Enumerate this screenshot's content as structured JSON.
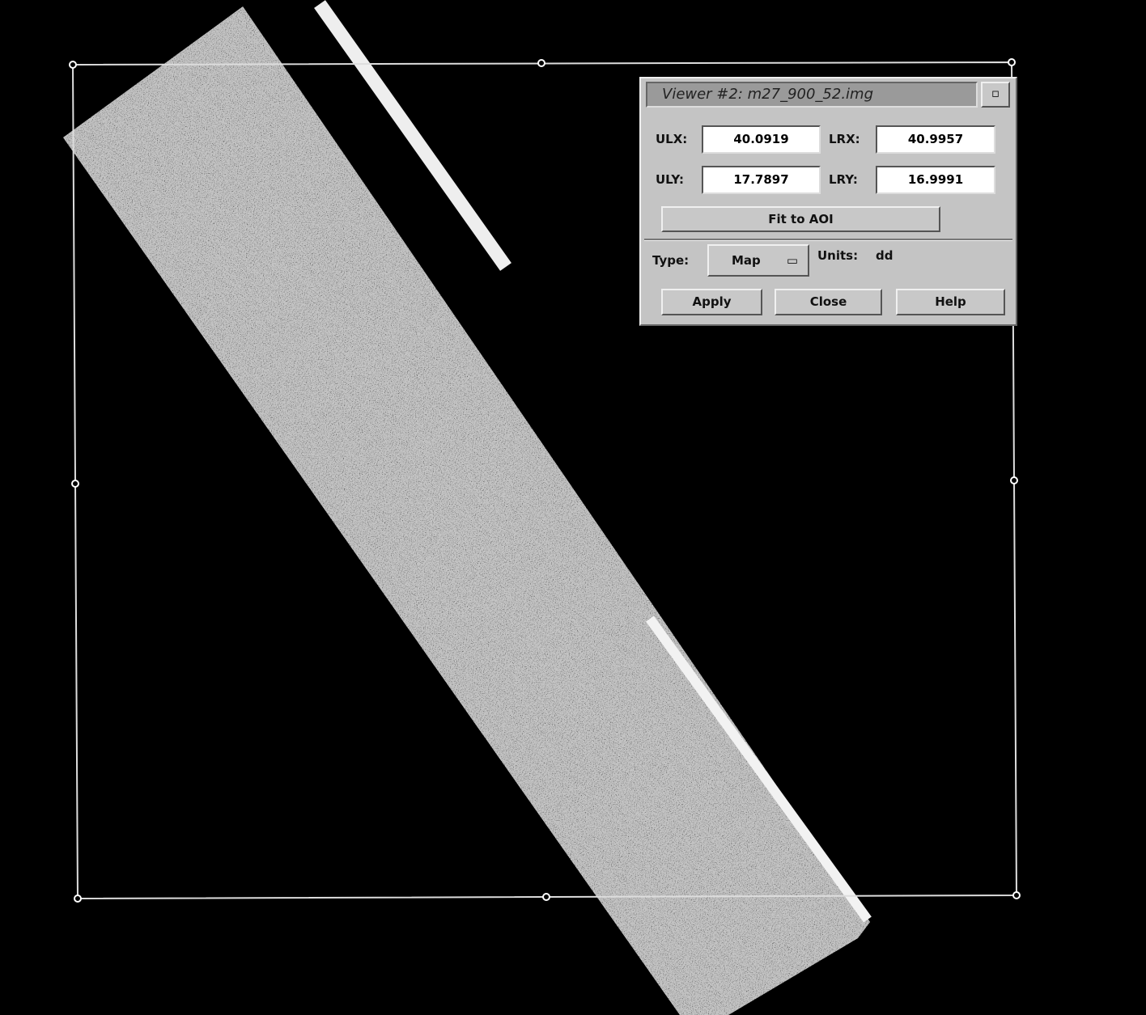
{
  "window": {
    "title": "Viewer #2: m27_900_52.img"
  },
  "fields": [
    {
      "label": "ULX:",
      "value": "40.0919"
    },
    {
      "label": "LRX:",
      "value": "40.9957"
    },
    {
      "label": "ULY:",
      "value": "17.7897"
    },
    {
      "label": "LRY:",
      "value": "16.9991"
    }
  ],
  "buttons": {
    "fit": "Fit to AOI",
    "apply": "Apply",
    "close": "Close",
    "help": "Help"
  },
  "type": {
    "label": "Type:",
    "value": "Map"
  },
  "units": {
    "label": "Units:",
    "value": "dd"
  }
}
